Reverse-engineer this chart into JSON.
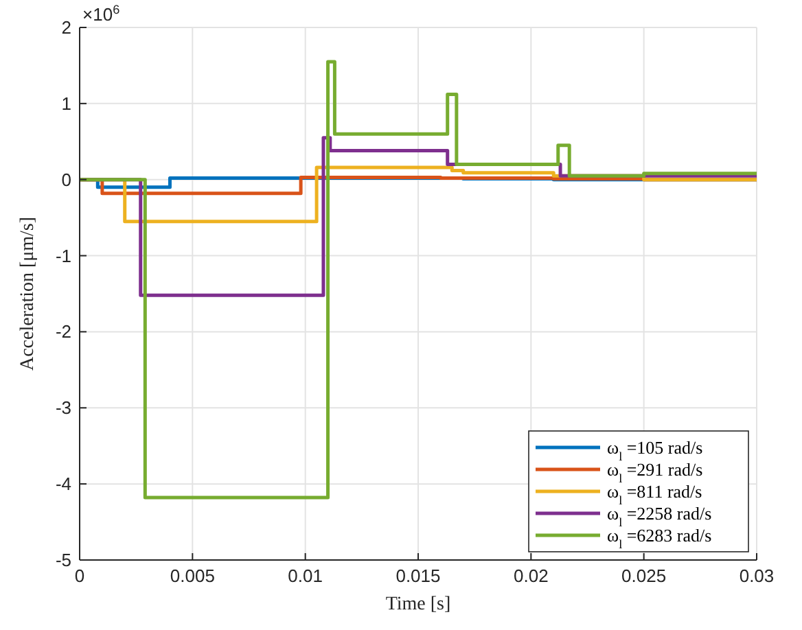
{
  "chart_data": {
    "type": "step",
    "xlabel": "Time [s]",
    "ylabel": "Acceleration [μm/s]",
    "annotations": [
      "×10$^{6}$"
    ],
    "xlim": [
      0,
      0.03
    ],
    "xticks": [
      0,
      0.005,
      0.01,
      0.015,
      0.02,
      0.025,
      0.03
    ],
    "ylim": [
      -5,
      2
    ],
    "yticks": [
      -5,
      -4,
      -3,
      -2,
      -1,
      0,
      1,
      2
    ],
    "grid": true,
    "legend": "bottom right",
    "series": [
      {
        "name": "ω$_{l}$ =105 rad/s",
        "color": "#0072bd",
        "x": [
          0,
          0.0008,
          0.004,
          0.017,
          0.021,
          0.03
        ],
        "values": [
          0,
          -0.1,
          0.02,
          0.01,
          0,
          0
        ]
      },
      {
        "name": "ω$_{l}$ =291 rad/s",
        "color": "#d95319",
        "x": [
          0,
          0.001,
          0.0098,
          0.016,
          0.021,
          0.025,
          0.03
        ],
        "values": [
          0,
          -0.18,
          0.03,
          0.02,
          0.01,
          0,
          0
        ]
      },
      {
        "name": "ω$_{l}$ =811 rad/s",
        "color": "#edb120",
        "x": [
          0,
          0.002,
          0.0105,
          0.0165,
          0.017,
          0.021,
          0.025,
          0.03
        ],
        "values": [
          0,
          -0.55,
          0.16,
          0.12,
          0.09,
          0.05,
          0,
          0
        ]
      },
      {
        "name": "ω$_{l}$ =2258 rad/s",
        "color": "#7e2f8e",
        "x": [
          0,
          0.0027,
          0.0108,
          0.0111,
          0.0163,
          0.0213,
          0.03
        ],
        "values": [
          0,
          -1.52,
          0.55,
          0.38,
          0.2,
          0.05,
          0.05
        ]
      },
      {
        "name": "ω$_{l}$ =6283 rad/s",
        "color": "#77ac30",
        "x": [
          0,
          0.0029,
          0.011,
          0.0113,
          0.0163,
          0.0167,
          0.0212,
          0.0217,
          0.025,
          0.03
        ],
        "values": [
          0,
          -4.18,
          1.55,
          0.6,
          1.12,
          0.2,
          0.45,
          0.05,
          0.08,
          0.08
        ]
      }
    ]
  }
}
